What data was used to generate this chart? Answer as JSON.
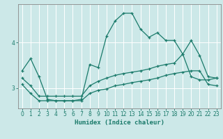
{
  "xlabel": "Humidex (Indice chaleur)",
  "ylabel": "",
  "bg_color": "#cce8e8",
  "line_color": "#1a7a6a",
  "grid_color": "#ffffff",
  "xlim": [
    -0.5,
    23.5
  ],
  "ylim": [
    2.55,
    4.85
  ],
  "yticks": [
    3,
    4
  ],
  "ytick_labels": [
    "3",
    "4"
  ],
  "xticks": [
    0,
    1,
    2,
    3,
    4,
    5,
    6,
    7,
    8,
    9,
    10,
    11,
    12,
    13,
    14,
    15,
    16,
    17,
    18,
    19,
    20,
    21,
    22,
    23
  ],
  "line1_x": [
    0,
    1,
    2,
    3,
    4,
    5,
    6,
    7,
    8,
    9,
    10,
    11,
    12,
    13,
    14,
    15,
    16,
    17,
    18,
    19,
    20,
    21,
    22,
    23
  ],
  "line1_y": [
    3.38,
    3.65,
    3.25,
    2.75,
    2.72,
    2.72,
    2.72,
    2.75,
    3.52,
    3.45,
    4.15,
    4.48,
    4.65,
    4.65,
    4.3,
    4.12,
    4.22,
    4.05,
    4.05,
    3.75,
    3.25,
    3.18,
    3.18,
    3.22
  ],
  "line2_x": [
    0,
    1,
    2,
    3,
    4,
    5,
    6,
    7,
    8,
    9,
    10,
    11,
    12,
    13,
    14,
    15,
    16,
    17,
    18,
    19,
    20,
    21,
    22,
    23
  ],
  "line2_y": [
    3.22,
    3.05,
    2.82,
    2.82,
    2.82,
    2.82,
    2.82,
    2.82,
    3.05,
    3.15,
    3.22,
    3.28,
    3.32,
    3.35,
    3.38,
    3.42,
    3.48,
    3.52,
    3.55,
    3.75,
    4.05,
    3.72,
    3.25,
    3.22
  ],
  "line3_x": [
    0,
    1,
    2,
    3,
    4,
    5,
    6,
    7,
    8,
    9,
    10,
    11,
    12,
    13,
    14,
    15,
    16,
    17,
    18,
    19,
    20,
    21,
    22,
    23
  ],
  "line3_y": [
    3.08,
    2.88,
    2.72,
    2.72,
    2.72,
    2.72,
    2.72,
    2.72,
    2.88,
    2.95,
    2.98,
    3.05,
    3.08,
    3.12,
    3.15,
    3.18,
    3.22,
    3.28,
    3.32,
    3.35,
    3.38,
    3.38,
    3.08,
    3.05
  ]
}
